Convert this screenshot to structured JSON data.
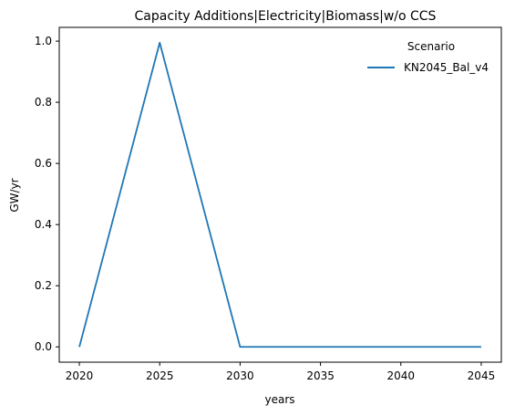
{
  "chart_data": {
    "type": "line",
    "title": "Capacity Additions|Electricity|Biomass|w/o CCS",
    "xlabel": "years",
    "ylabel": "GW/yr",
    "x": [
      2020,
      2025,
      2030,
      2035,
      2040,
      2045
    ],
    "series": [
      {
        "name": "KN2045_Bal_v4",
        "values": [
          0.0,
          0.995,
          0.0,
          0.0,
          0.0,
          0.0
        ],
        "color": "#1f77b4"
      }
    ],
    "xticks": [
      "2020",
      "2025",
      "2030",
      "2035",
      "2040",
      "2045"
    ],
    "yticks": [
      "0.0",
      "0.2",
      "0.4",
      "0.6",
      "0.8",
      "1.0"
    ],
    "xlim": [
      2018.75,
      2046.25
    ],
    "ylim": [
      -0.05,
      1.045
    ],
    "legend": {
      "title": "Scenario",
      "position": "top-right"
    },
    "grid": false
  }
}
